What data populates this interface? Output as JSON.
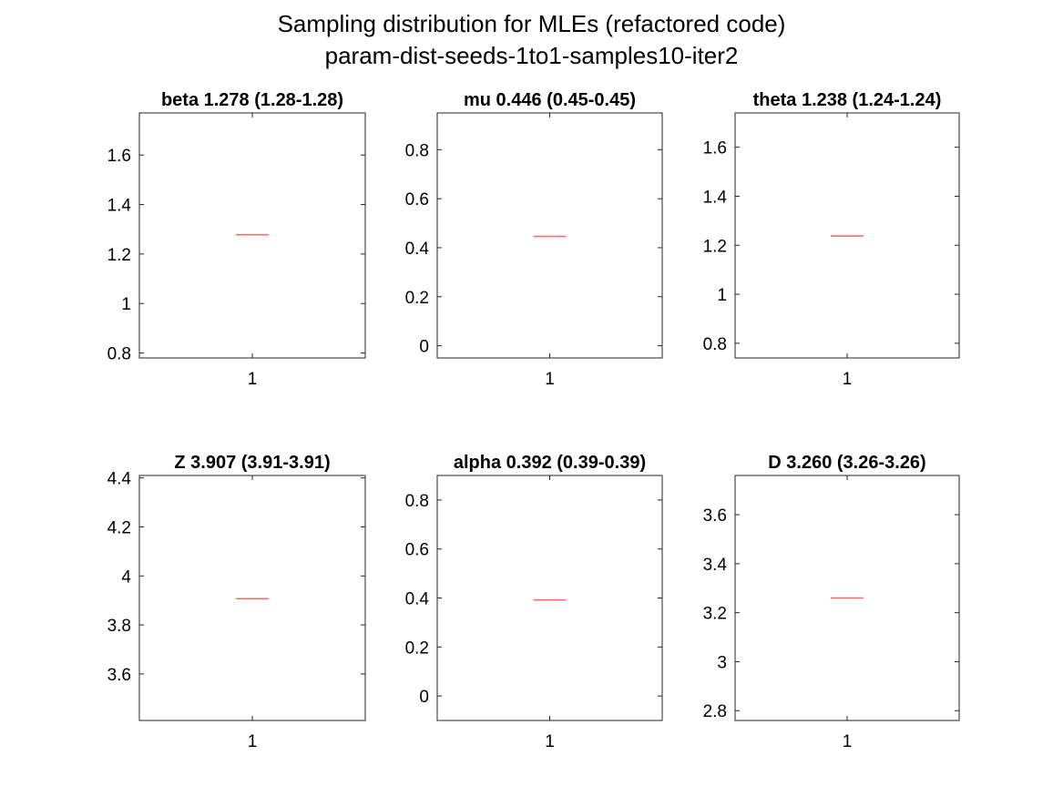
{
  "figure": {
    "title_line1": "Sampling distribution for MLEs (refactored code)",
    "title_line2": "param-dist-seeds-1to1-samples10-iter2"
  },
  "colors": {
    "median_line": "#f07070",
    "axes": "#262626",
    "text": "#000000"
  },
  "chart_data": [
    {
      "type": "box",
      "title": "beta 1.278 (1.28-1.28)",
      "categories": [
        "1"
      ],
      "values": [
        1.278
      ],
      "ylim": [
        0.78,
        1.77
      ],
      "yticks": [
        0.8,
        1,
        1.2,
        1.4,
        1.6
      ],
      "yticklabels": [
        "0.8",
        "1",
        "1.2",
        "1.4",
        "1.6"
      ]
    },
    {
      "type": "box",
      "title": "mu 0.446 (0.45-0.45)",
      "categories": [
        "1"
      ],
      "values": [
        0.446
      ],
      "ylim": [
        -0.05,
        0.95
      ],
      "yticks": [
        0,
        0.2,
        0.4,
        0.6,
        0.8
      ],
      "yticklabels": [
        "0",
        "0.2",
        "0.4",
        "0.6",
        "0.8"
      ]
    },
    {
      "type": "box",
      "title": "theta 1.238 (1.24-1.24)",
      "categories": [
        "1"
      ],
      "values": [
        1.238
      ],
      "ylim": [
        0.74,
        1.74
      ],
      "yticks": [
        0.8,
        1,
        1.2,
        1.4,
        1.6
      ],
      "yticklabels": [
        "0.8",
        "1",
        "1.2",
        "1.4",
        "1.6"
      ]
    },
    {
      "type": "box",
      "title": "Z 3.907 (3.91-3.91)",
      "categories": [
        "1"
      ],
      "values": [
        3.907
      ],
      "ylim": [
        3.41,
        4.41
      ],
      "yticks": [
        3.6,
        3.8,
        4,
        4.2,
        4.4
      ],
      "yticklabels": [
        "3.6",
        "3.8",
        "4",
        "4.2",
        "4.4"
      ]
    },
    {
      "type": "box",
      "title": "alpha 0.392 (0.39-0.39)",
      "categories": [
        "1"
      ],
      "values": [
        0.392
      ],
      "ylim": [
        -0.1,
        0.9
      ],
      "yticks": [
        0,
        0.2,
        0.4,
        0.6,
        0.8
      ],
      "yticklabels": [
        "0",
        "0.2",
        "0.4",
        "0.6",
        "0.8"
      ]
    },
    {
      "type": "box",
      "title": "D 3.260 (3.26-3.26)",
      "categories": [
        "1"
      ],
      "values": [
        3.26
      ],
      "ylim": [
        2.76,
        3.76
      ],
      "yticks": [
        2.8,
        3,
        3.2,
        3.4,
        3.6
      ],
      "yticklabels": [
        "2.8",
        "3",
        "3.2",
        "3.4",
        "3.6"
      ]
    }
  ]
}
